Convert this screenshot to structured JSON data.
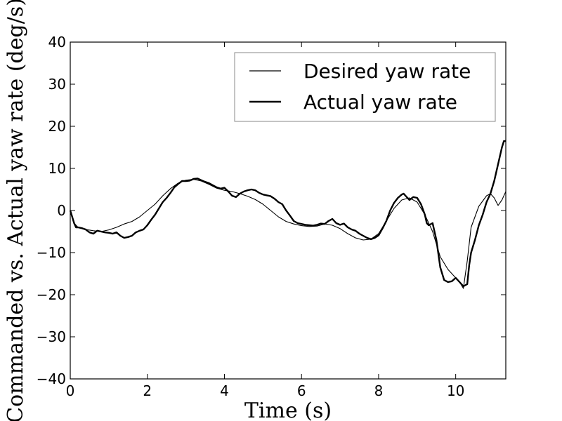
{
  "chart_data": {
    "type": "line",
    "title": "",
    "xlabel": "Time (s)",
    "ylabel": "Commanded vs. Actual yaw rate (deg/s)",
    "xlim": [
      0,
      11.3
    ],
    "ylim": [
      -40,
      40
    ],
    "x_ticks": [
      0,
      2,
      4,
      6,
      8,
      10
    ],
    "y_ticks": [
      -40,
      -30,
      -20,
      -10,
      0,
      10,
      20,
      30,
      40
    ],
    "x_tick_labels": [
      "0",
      "2",
      "4",
      "6",
      "8",
      "10"
    ],
    "y_tick_labels": [
      "−40",
      "−30",
      "−20",
      "−10",
      "0",
      "10",
      "20",
      "30",
      "40"
    ],
    "grid": false,
    "legend_position": "top-right",
    "series": [
      {
        "name": "Desired yaw rate",
        "style": "thin",
        "x": [
          0,
          0.1,
          0.2,
          0.4,
          0.6,
          0.8,
          1.0,
          1.2,
          1.4,
          1.6,
          1.8,
          2.0,
          2.2,
          2.4,
          2.6,
          2.8,
          3.0,
          3.2,
          3.4,
          3.6,
          3.8,
          4.0,
          4.2,
          4.4,
          4.6,
          4.8,
          5.0,
          5.2,
          5.4,
          5.6,
          5.8,
          6.0,
          6.2,
          6.4,
          6.6,
          6.8,
          7.0,
          7.2,
          7.4,
          7.6,
          7.8,
          8.0,
          8.2,
          8.4,
          8.6,
          8.8,
          9.0,
          9.2,
          9.4,
          9.6,
          9.8,
          10.0,
          10.1,
          10.2,
          10.3,
          10.4,
          10.6,
          10.8,
          10.9,
          11.0,
          11.1,
          11.2,
          11.3
        ],
        "values": [
          0,
          -3,
          -4,
          -4.5,
          -4.8,
          -5,
          -4.6,
          -4,
          -3.2,
          -2.6,
          -1.5,
          0,
          1.5,
          3.5,
          5.2,
          6.5,
          7.2,
          7.4,
          7,
          6.2,
          5.3,
          4.8,
          4.5,
          4,
          3.4,
          2.6,
          1.5,
          0,
          -1.5,
          -2.6,
          -3.2,
          -3.6,
          -3.8,
          -3.7,
          -3.2,
          -3.5,
          -4.3,
          -5.5,
          -6.5,
          -7,
          -6.8,
          -5.5,
          -2.5,
          0.5,
          2.5,
          3,
          2,
          -1,
          -5,
          -11,
          -14,
          -16,
          -17,
          -18.5,
          -12,
          -4,
          1,
          3.5,
          4,
          3,
          1.2,
          2.5,
          4.5
        ]
      },
      {
        "name": "Actual yaw rate",
        "style": "thick",
        "x": [
          0,
          0.1,
          0.15,
          0.2,
          0.3,
          0.4,
          0.5,
          0.6,
          0.7,
          0.8,
          0.9,
          1.0,
          1.1,
          1.2,
          1.3,
          1.4,
          1.5,
          1.6,
          1.7,
          1.8,
          1.9,
          2.0,
          2.1,
          2.2,
          2.3,
          2.4,
          2.5,
          2.6,
          2.7,
          2.8,
          2.9,
          3.0,
          3.1,
          3.2,
          3.3,
          3.4,
          3.5,
          3.6,
          3.7,
          3.8,
          3.9,
          4.0,
          4.1,
          4.2,
          4.3,
          4.4,
          4.5,
          4.6,
          4.7,
          4.8,
          4.9,
          5.0,
          5.1,
          5.2,
          5.3,
          5.4,
          5.5,
          5.6,
          5.7,
          5.8,
          5.9,
          6.0,
          6.1,
          6.2,
          6.3,
          6.4,
          6.5,
          6.6,
          6.7,
          6.8,
          6.9,
          7.0,
          7.1,
          7.2,
          7.3,
          7.4,
          7.5,
          7.6,
          7.7,
          7.8,
          7.9,
          8.0,
          8.1,
          8.2,
          8.3,
          8.4,
          8.5,
          8.6,
          8.65,
          8.7,
          8.8,
          8.9,
          9.0,
          9.1,
          9.2,
          9.25,
          9.3,
          9.4,
          9.5,
          9.6,
          9.7,
          9.8,
          9.9,
          10.0,
          10.1,
          10.2,
          10.3,
          10.35,
          10.4,
          10.5,
          10.6,
          10.7,
          10.8,
          10.9,
          11.0,
          11.1,
          11.2,
          11.25,
          11.3
        ],
        "values": [
          0,
          -3,
          -4,
          -4,
          -4.2,
          -4.5,
          -5.2,
          -5.5,
          -4.8,
          -5,
          -5.2,
          -5.3,
          -5.5,
          -5.2,
          -6,
          -6.5,
          -6.3,
          -6,
          -5.2,
          -4.8,
          -4.5,
          -3.5,
          -2.2,
          -1,
          0.5,
          2,
          3,
          4.2,
          5.5,
          6.3,
          7,
          7,
          7.1,
          7.5,
          7.6,
          7.2,
          6.8,
          6.5,
          6,
          5.5,
          5.2,
          5.4,
          4.5,
          3.5,
          3.2,
          4,
          4.5,
          4.8,
          5,
          4.8,
          4.2,
          3.8,
          3.6,
          3.4,
          2.8,
          2,
          1.5,
          0,
          -1.2,
          -2.5,
          -3,
          -3.2,
          -3.4,
          -3.5,
          -3.6,
          -3.4,
          -3.1,
          -3.2,
          -2.5,
          -2,
          -3,
          -3.4,
          -3.1,
          -4,
          -4.5,
          -4.8,
          -5.5,
          -6,
          -6.5,
          -6.8,
          -6.5,
          -5.9,
          -4.3,
          -2.5,
          0,
          1.8,
          3,
          3.8,
          4,
          3.5,
          2.5,
          3.2,
          3,
          1.5,
          -1,
          -3,
          -3.5,
          -3,
          -7,
          -13.5,
          -16.5,
          -17,
          -16.8,
          -16,
          -17,
          -18,
          -17.5,
          -13,
          -10,
          -7,
          -3.5,
          -1,
          2,
          4,
          7,
          11,
          15,
          16.5,
          16.5
        ]
      }
    ]
  }
}
